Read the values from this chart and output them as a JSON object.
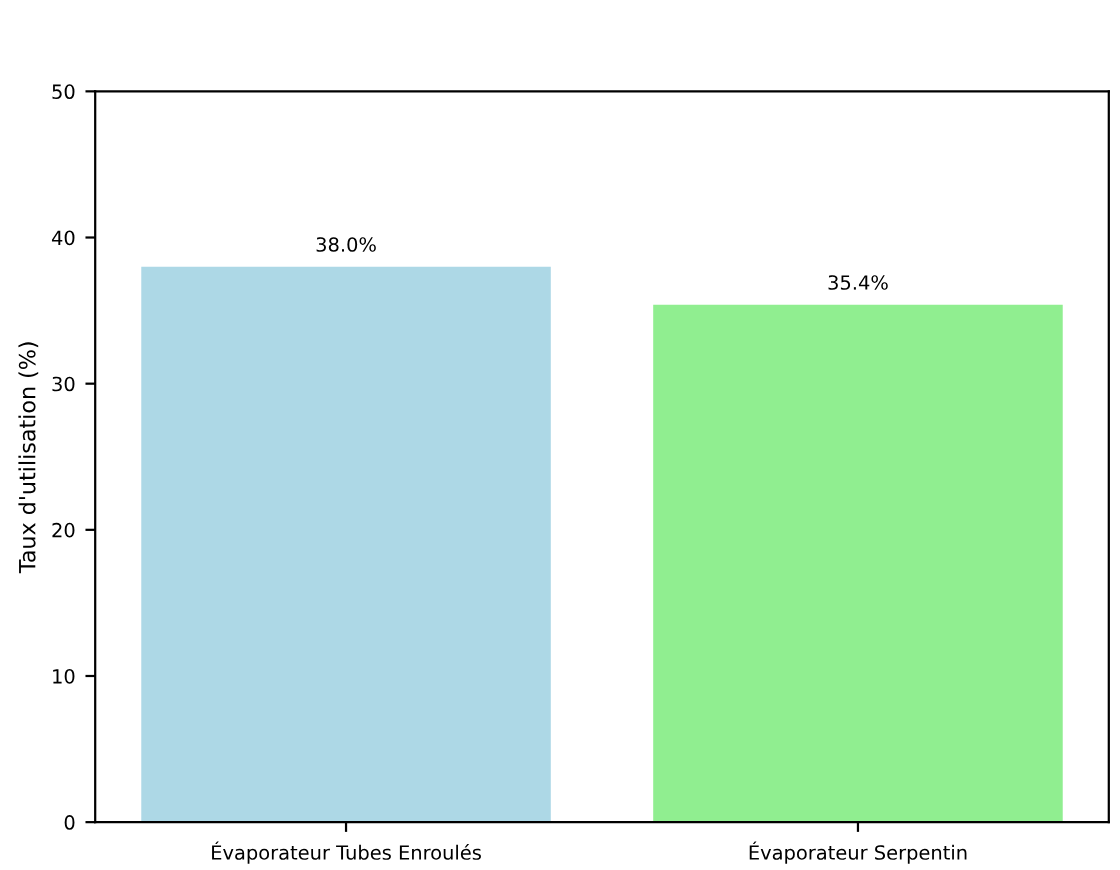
{
  "chart_data": {
    "type": "bar",
    "ylabel": "Taux d'utilisation (%)",
    "categories": [
      "Évaporateur Tubes Enroulés",
      "Évaporateur Serpentin"
    ],
    "values": [
      38.0,
      35.4
    ],
    "colors": [
      "#add8e6",
      "#90ee90"
    ],
    "value_labels": [
      "38.0%",
      "35.4%"
    ],
    "ylim": [
      0,
      50
    ],
    "yticks": [
      0,
      10,
      20,
      30,
      40,
      50
    ],
    "grid": false,
    "legend": false
  }
}
